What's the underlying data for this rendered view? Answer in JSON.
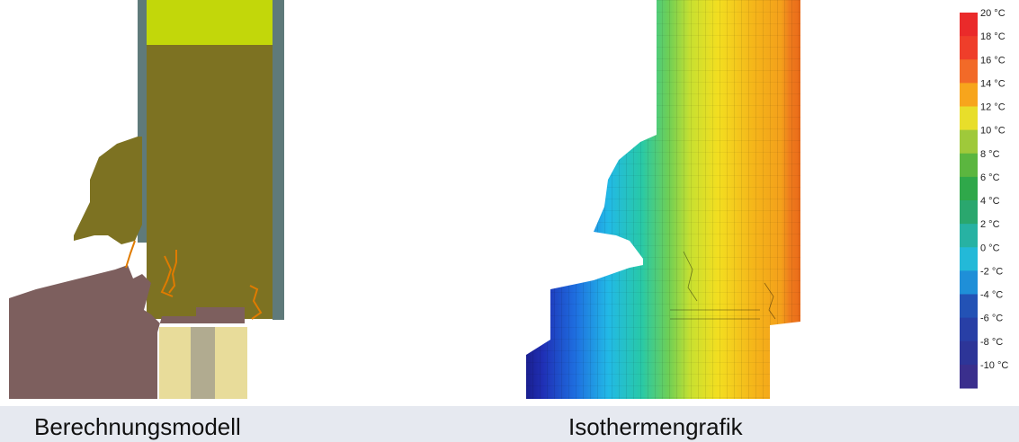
{
  "captions": {
    "left": "Berechnungsmodell",
    "right": "Isothermengrafik"
  },
  "materials": {
    "glass_seal": "#c2d70a",
    "glass_panel": "#7d7222",
    "frame_grey": "#5f7a7a",
    "sill_brown": "#7d5f5e",
    "insulation_light": "#e8dc9a",
    "insulation_core": "#b1ab90",
    "seal_orange": "#e07b00"
  },
  "color_scale": [
    {
      "label": "20 °C",
      "color": "#ea2a2a"
    },
    {
      "label": "18 °C",
      "color": "#ef3e2a"
    },
    {
      "label": "16 °C",
      "color": "#f26a28"
    },
    {
      "label": "14 °C",
      "color": "#f7a51c"
    },
    {
      "label": "12 °C",
      "color": "#e8de2a"
    },
    {
      "label": "10 °C",
      "color": "#9fc93a"
    },
    {
      "label": "8 °C",
      "color": "#5bb63f"
    },
    {
      "label": "6 °C",
      "color": "#2fa84a"
    },
    {
      "label": "4 °C",
      "color": "#2aa76e"
    },
    {
      "label": "2 °C",
      "color": "#27b2a3"
    },
    {
      "label": "0 °C",
      "color": "#23b9d8"
    },
    {
      "label": "-2 °C",
      "color": "#1f8fd8"
    },
    {
      "label": "-4 °C",
      "color": "#2352b5"
    },
    {
      "label": "-6 °C",
      "color": "#283fa6"
    },
    {
      "label": "-8 °C",
      "color": "#2d3598"
    },
    {
      "label": "-10 °C",
      "color": "#3a2f8d"
    }
  ]
}
